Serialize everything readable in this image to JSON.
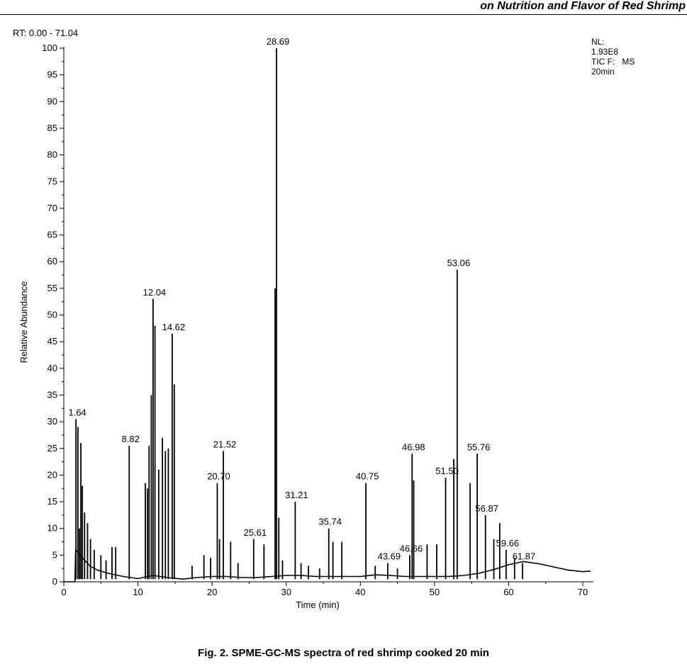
{
  "header": {
    "text": "on Nutrition and Flavor of Red Shrimp"
  },
  "rt_range": "RT: 0.00 - 71.04",
  "info_lines": [
    "NL:",
    "1.93E8",
    "TIC F:   MS",
    "20min"
  ],
  "caption": "Fig. 2. SPME-GC-MS spectra of red shrimp cooked 20 min",
  "chart_data": {
    "type": "line",
    "title": "",
    "xlabel": "Time (min)",
    "ylabel": "Relative Abundance",
    "xlim": [
      0,
      71.04
    ],
    "ylim": [
      0,
      100
    ],
    "x_ticks": [
      0,
      10,
      20,
      30,
      40,
      50,
      60,
      70
    ],
    "y_ticks": [
      0,
      5,
      10,
      15,
      20,
      25,
      30,
      35,
      40,
      45,
      50,
      55,
      60,
      65,
      70,
      75,
      80,
      85,
      90,
      95,
      100
    ],
    "grid": false,
    "peaks": [
      {
        "rt": 1.64,
        "abundance": 30.5
      },
      {
        "rt": 1.9,
        "abundance": 29
      },
      {
        "rt": 2.1,
        "abundance": 10
      },
      {
        "rt": 2.3,
        "abundance": 26
      },
      {
        "rt": 2.5,
        "abundance": 18
      },
      {
        "rt": 2.8,
        "abundance": 13
      },
      {
        "rt": 3.2,
        "abundance": 11
      },
      {
        "rt": 3.6,
        "abundance": 8
      },
      {
        "rt": 4.1,
        "abundance": 6
      },
      {
        "rt": 5.0,
        "abundance": 5
      },
      {
        "rt": 5.7,
        "abundance": 4
      },
      {
        "rt": 6.5,
        "abundance": 6.5
      },
      {
        "rt": 7.0,
        "abundance": 6.5
      },
      {
        "rt": 8.82,
        "abundance": 25.5
      },
      {
        "rt": 11.0,
        "abundance": 18.5
      },
      {
        "rt": 11.3,
        "abundance": 17.5
      },
      {
        "rt": 11.5,
        "abundance": 25.5
      },
      {
        "rt": 11.8,
        "abundance": 35
      },
      {
        "rt": 12.04,
        "abundance": 53
      },
      {
        "rt": 12.3,
        "abundance": 48
      },
      {
        "rt": 12.8,
        "abundance": 21
      },
      {
        "rt": 13.3,
        "abundance": 27
      },
      {
        "rt": 13.7,
        "abundance": 24.5
      },
      {
        "rt": 14.1,
        "abundance": 25
      },
      {
        "rt": 14.62,
        "abundance": 46.5
      },
      {
        "rt": 14.9,
        "abundance": 37
      },
      {
        "rt": 17.3,
        "abundance": 3
      },
      {
        "rt": 18.9,
        "abundance": 5
      },
      {
        "rt": 19.8,
        "abundance": 4.5
      },
      {
        "rt": 20.7,
        "abundance": 18.5
      },
      {
        "rt": 21.0,
        "abundance": 8
      },
      {
        "rt": 21.52,
        "abundance": 24.5
      },
      {
        "rt": 22.5,
        "abundance": 7.5
      },
      {
        "rt": 23.5,
        "abundance": 3.5
      },
      {
        "rt": 25.61,
        "abundance": 8
      },
      {
        "rt": 27.0,
        "abundance": 7
      },
      {
        "rt": 28.5,
        "abundance": 55
      },
      {
        "rt": 28.69,
        "abundance": 100
      },
      {
        "rt": 29.0,
        "abundance": 12
      },
      {
        "rt": 29.5,
        "abundance": 4
      },
      {
        "rt": 31.21,
        "abundance": 15
      },
      {
        "rt": 32.0,
        "abundance": 3.5
      },
      {
        "rt": 33.0,
        "abundance": 3
      },
      {
        "rt": 34.5,
        "abundance": 2.5
      },
      {
        "rt": 35.74,
        "abundance": 10
      },
      {
        "rt": 36.3,
        "abundance": 7.5
      },
      {
        "rt": 37.5,
        "abundance": 7.5
      },
      {
        "rt": 40.75,
        "abundance": 18.5
      },
      {
        "rt": 42.0,
        "abundance": 3
      },
      {
        "rt": 43.69,
        "abundance": 3.5
      },
      {
        "rt": 45.0,
        "abundance": 2.5
      },
      {
        "rt": 46.66,
        "abundance": 5
      },
      {
        "rt": 46.98,
        "abundance": 24
      },
      {
        "rt": 47.2,
        "abundance": 19
      },
      {
        "rt": 49.0,
        "abundance": 7
      },
      {
        "rt": 50.3,
        "abundance": 7
      },
      {
        "rt": 51.5,
        "abundance": 19.5
      },
      {
        "rt": 52.6,
        "abundance": 23
      },
      {
        "rt": 53.06,
        "abundance": 58.5
      },
      {
        "rt": 54.8,
        "abundance": 18.5
      },
      {
        "rt": 55.76,
        "abundance": 24
      },
      {
        "rt": 56.87,
        "abundance": 12.5
      },
      {
        "rt": 58.0,
        "abundance": 8
      },
      {
        "rt": 58.8,
        "abundance": 11
      },
      {
        "rt": 59.66,
        "abundance": 6
      },
      {
        "rt": 60.8,
        "abundance": 4.5
      },
      {
        "rt": 61.87,
        "abundance": 3.5
      }
    ],
    "peak_labels": [
      {
        "text": "1.64",
        "rt": 1.64,
        "abundance": 30.5
      },
      {
        "text": "8.82",
        "rt": 8.82,
        "abundance": 25.5
      },
      {
        "text": "12.04",
        "rt": 12.04,
        "abundance": 53
      },
      {
        "text": "14.62",
        "rt": 14.62,
        "abundance": 46.5
      },
      {
        "text": "20.70",
        "rt": 20.7,
        "abundance": 18.5
      },
      {
        "text": "21.52",
        "rt": 21.52,
        "abundance": 24.5
      },
      {
        "text": "25.61",
        "rt": 25.61,
        "abundance": 8
      },
      {
        "text": "28.69",
        "rt": 28.69,
        "abundance": 100
      },
      {
        "text": "31.21",
        "rt": 31.21,
        "abundance": 15
      },
      {
        "text": "35.74",
        "rt": 35.74,
        "abundance": 10
      },
      {
        "text": "40.75",
        "rt": 40.75,
        "abundance": 18.5
      },
      {
        "text": "43.69",
        "rt": 43.69,
        "abundance": 3.5
      },
      {
        "text": "46.66",
        "rt": 46.66,
        "abundance": 5
      },
      {
        "text": "46.98",
        "rt": 46.98,
        "abundance": 24
      },
      {
        "text": "51.50",
        "rt": 51.5,
        "abundance": 19.5
      },
      {
        "text": "53.06",
        "rt": 53.06,
        "abundance": 58.5
      },
      {
        "text": "55.76",
        "rt": 55.76,
        "abundance": 24
      },
      {
        "text": "56.87",
        "rt": 56.87,
        "abundance": 12.5
      },
      {
        "text": "59.66",
        "rt": 59.66,
        "abundance": 6
      },
      {
        "text": "61.87",
        "rt": 61.87,
        "abundance": 3.5
      }
    ],
    "baseline": [
      [
        0,
        0
      ],
      [
        1.5,
        0
      ],
      [
        1.6,
        6
      ],
      [
        2.5,
        4.5
      ],
      [
        3.5,
        3
      ],
      [
        4.5,
        2.2
      ],
      [
        6,
        1.6
      ],
      [
        8,
        1.0
      ],
      [
        10,
        0.6
      ],
      [
        12,
        1.2
      ],
      [
        14,
        0.8
      ],
      [
        16,
        0.5
      ],
      [
        18,
        0.8
      ],
      [
        20,
        1.0
      ],
      [
        22,
        1.0
      ],
      [
        24,
        0.8
      ],
      [
        26,
        0.8
      ],
      [
        28,
        1.0
      ],
      [
        30,
        1.2
      ],
      [
        32,
        1.2
      ],
      [
        34,
        1.0
      ],
      [
        36,
        1.0
      ],
      [
        38,
        1.0
      ],
      [
        40,
        1.0
      ],
      [
        42,
        1.3
      ],
      [
        44,
        1.2
      ],
      [
        46,
        1.0
      ],
      [
        48,
        1.0
      ],
      [
        50,
        1.0
      ],
      [
        52,
        1.0
      ],
      [
        54,
        1.2
      ],
      [
        56,
        1.6
      ],
      [
        58,
        2.3
      ],
      [
        60,
        3.2
      ],
      [
        62,
        3.8
      ],
      [
        64,
        3.4
      ],
      [
        66,
        2.8
      ],
      [
        68,
        2.2
      ],
      [
        70,
        1.9
      ],
      [
        71.04,
        2.0
      ]
    ]
  }
}
